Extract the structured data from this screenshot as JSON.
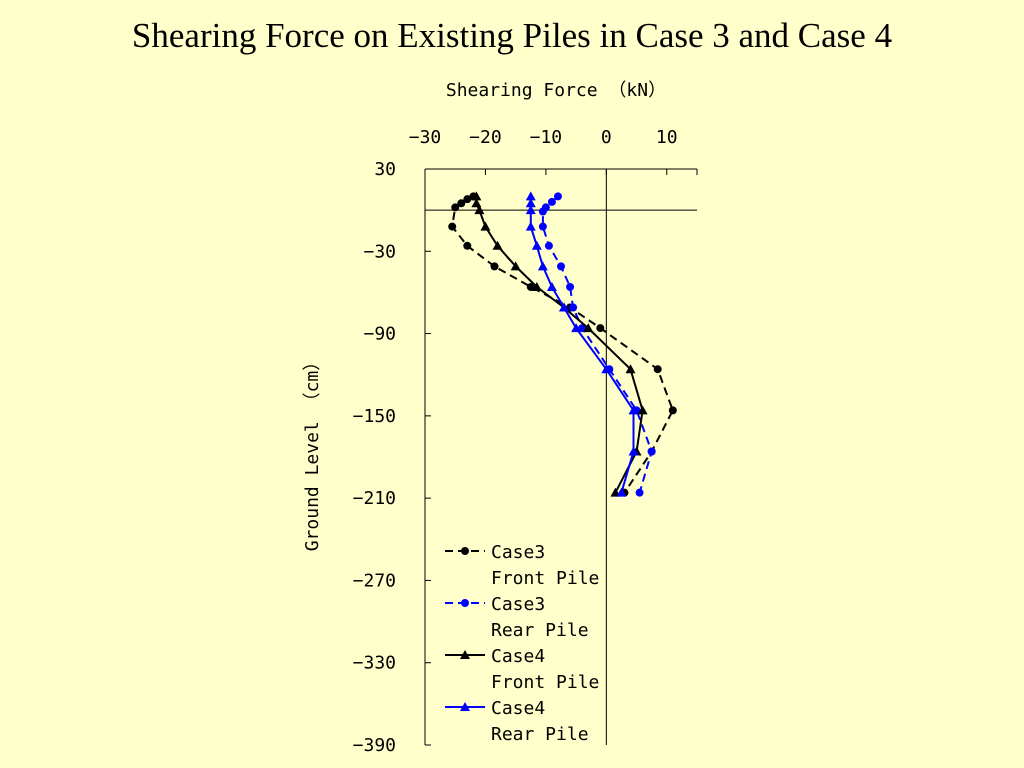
{
  "slide": {
    "title": "Shearing Force on Existing Piles in Case 3 and Case 4"
  },
  "chart_data": {
    "type": "line",
    "xlabel": "Shearing Force （kN）",
    "ylabel": "Ground Level （cm）",
    "xlim": [
      -30,
      15
    ],
    "ylim": [
      -390,
      30
    ],
    "x_ticks": [
      -30,
      -20,
      -10,
      0,
      10
    ],
    "x_tick_labels": [
      "−30",
      "−20",
      "−10",
      "0",
      "10"
    ],
    "y_ticks": [
      30,
      -30,
      -90,
      -150,
      -210,
      -270,
      -330,
      -390
    ],
    "y_tick_labels": [
      "30",
      "−30",
      "−90",
      "−150",
      "−210",
      "−270",
      "−330",
      "−390"
    ],
    "reference_line_y": 0,
    "legend_position": "bottom-center",
    "series": [
      {
        "name": "Case3 Front Pile",
        "color": "#000000",
        "line_style": "dashed",
        "marker": "circle",
        "points": [
          [
            -22,
            10
          ],
          [
            -23,
            8
          ],
          [
            -24,
            5
          ],
          [
            -25,
            2
          ],
          [
            -25.5,
            -12
          ],
          [
            -23,
            -26
          ],
          [
            -18.5,
            -41
          ],
          [
            -12.5,
            -56
          ],
          [
            -6,
            -71
          ],
          [
            -1,
            -86
          ],
          [
            8.5,
            -116
          ],
          [
            11,
            -146
          ],
          [
            7.5,
            -176
          ],
          [
            3,
            -206
          ]
        ]
      },
      {
        "name": "Case3 Rear Pile",
        "color": "#0000ff",
        "line_style": "dashed",
        "marker": "circle",
        "points": [
          [
            -8,
            10
          ],
          [
            -9,
            6
          ],
          [
            -10,
            2
          ],
          [
            -10.5,
            -1
          ],
          [
            -10.5,
            -12
          ],
          [
            -9.5,
            -26
          ],
          [
            -7.5,
            -41
          ],
          [
            -6,
            -56
          ],
          [
            -5.5,
            -71
          ],
          [
            -4,
            -86
          ],
          [
            0.5,
            -116
          ],
          [
            5,
            -146
          ],
          [
            7.5,
            -176
          ],
          [
            5.5,
            -206
          ]
        ]
      },
      {
        "name": "Case4 Front Pile",
        "color": "#000000",
        "line_style": "solid",
        "marker": "triangle",
        "points": [
          [
            -21.5,
            10
          ],
          [
            -21.5,
            5
          ],
          [
            -21,
            0
          ],
          [
            -20,
            -12
          ],
          [
            -18,
            -26
          ],
          [
            -15,
            -41
          ],
          [
            -11.5,
            -56
          ],
          [
            -7,
            -71
          ],
          [
            -3,
            -86
          ],
          [
            4,
            -116
          ],
          [
            6,
            -146
          ],
          [
            5,
            -176
          ],
          [
            1.5,
            -206
          ]
        ]
      },
      {
        "name": "Case4 Rear Pile",
        "color": "#0000ff",
        "line_style": "solid",
        "marker": "triangle",
        "points": [
          [
            -12.5,
            10
          ],
          [
            -12.5,
            5
          ],
          [
            -12.5,
            0
          ],
          [
            -12.5,
            -12
          ],
          [
            -11.5,
            -26
          ],
          [
            -10.5,
            -41
          ],
          [
            -9,
            -56
          ],
          [
            -7,
            -71
          ],
          [
            -5,
            -86
          ],
          [
            0,
            -116
          ],
          [
            4.5,
            -146
          ],
          [
            4.5,
            -176
          ],
          [
            2.5,
            -206
          ]
        ]
      }
    ]
  },
  "legend": {
    "items": [
      {
        "line1": "Case3",
        "line2": "Front Pile"
      },
      {
        "line1": "Case3",
        "line2": "Rear Pile"
      },
      {
        "line1": "Case4",
        "line2": "Front Pile"
      },
      {
        "line1": "Case4",
        "line2": "Rear Pile"
      }
    ]
  }
}
